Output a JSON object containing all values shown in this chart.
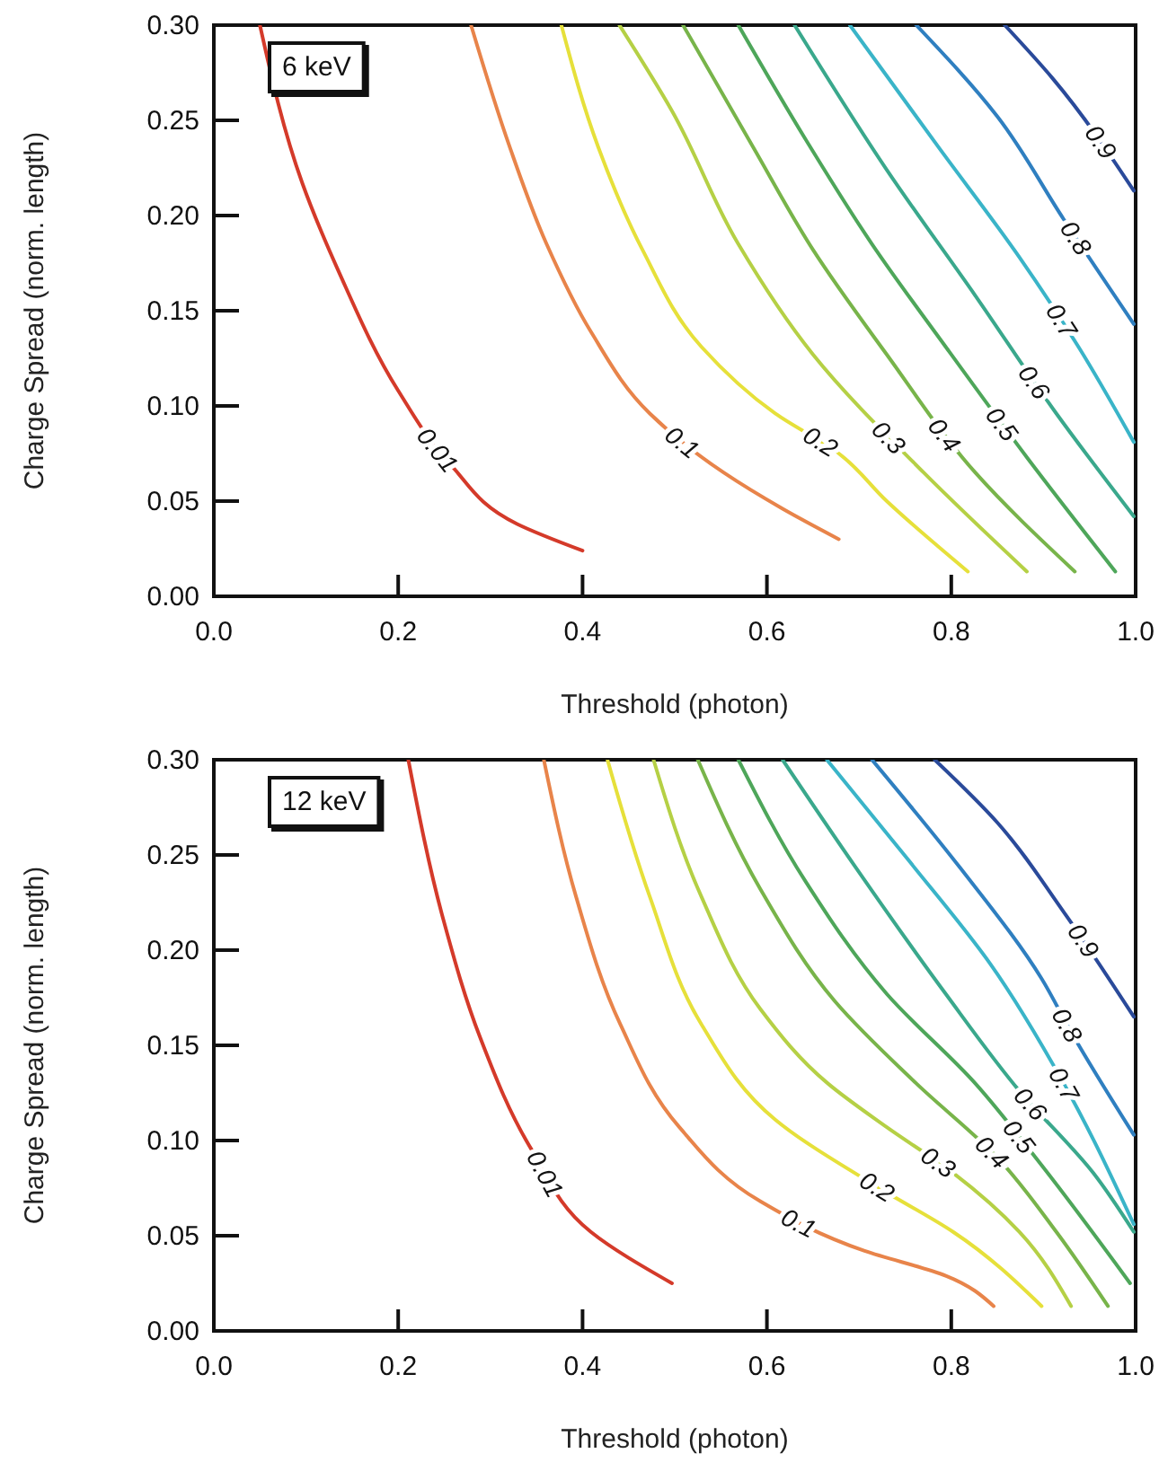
{
  "chart_data": [
    {
      "type": "line",
      "xlabel": "Threshold (photon)",
      "ylabel": "Charge Spread (norm. length)",
      "annotations": [
        "6 keV"
      ],
      "xlim": [
        0,
        1
      ],
      "ylim": [
        0,
        0.3
      ],
      "xticks": [
        {
          "value": 0,
          "label": "0.0"
        },
        {
          "value": 0.2,
          "label": "0.2"
        },
        {
          "value": 0.4,
          "label": "0.4"
        },
        {
          "value": 0.6,
          "label": "0.6"
        },
        {
          "value": 0.8,
          "label": "0.8"
        },
        {
          "value": 1,
          "label": "1.0"
        }
      ],
      "yticks": [
        {
          "value": 0,
          "label": "0.00"
        },
        {
          "value": 0.05,
          "label": "0.05"
        },
        {
          "value": 0.1,
          "label": "0.10"
        },
        {
          "value": 0.15,
          "label": "0.15"
        },
        {
          "value": 0.2,
          "label": "0.20"
        },
        {
          "value": 0.25,
          "label": "0.25"
        },
        {
          "value": 0.3,
          "label": "0.30"
        }
      ],
      "grid": false,
      "legend": false,
      "series": [
        {
          "name": "0.01",
          "color": "#d43a2a",
          "x": [
            0.05,
            0.096,
            0.136,
            0.2,
            0.257,
            0.329,
            0.4
          ],
          "values": [
            0.3,
            0.217,
            0.17,
            0.108,
            0.069,
            0.038,
            0.024
          ]
        },
        {
          "name": "0.1",
          "color": "#e8844a",
          "x": [
            0.279,
            0.321,
            0.361,
            0.409,
            0.473,
            0.553,
            0.617,
            0.678
          ],
          "values": [
            0.3,
            0.236,
            0.185,
            0.139,
            0.096,
            0.065,
            0.046,
            0.03
          ]
        },
        {
          "name": "0.2",
          "color": "#e6e03a",
          "x": [
            0.377,
            0.417,
            0.465,
            0.529,
            0.609,
            0.678,
            0.73,
            0.818
          ],
          "values": [
            0.3,
            0.236,
            0.182,
            0.131,
            0.096,
            0.075,
            0.05,
            0.013
          ]
        },
        {
          "name": "0.3",
          "color": "#b5d045",
          "x": [
            0.44,
            0.497,
            0.569,
            0.65,
            0.77,
            0.882
          ],
          "values": [
            0.3,
            0.255,
            0.185,
            0.127,
            0.065,
            0.013
          ]
        },
        {
          "name": "0.4",
          "color": "#78b44a",
          "x": [
            0.509,
            0.585,
            0.65,
            0.73,
            0.826,
            0.934
          ],
          "values": [
            0.3,
            0.236,
            0.182,
            0.127,
            0.065,
            0.013
          ]
        },
        {
          "name": "0.5",
          "color": "#4ea65a",
          "x": [
            0.569,
            0.642,
            0.714,
            0.794,
            0.882,
            0.978
          ],
          "values": [
            0.3,
            0.24,
            0.185,
            0.131,
            0.073,
            0.013
          ]
        },
        {
          "name": "0.6",
          "color": "#3aa88c",
          "x": [
            0.63,
            0.73,
            0.826,
            0.914,
            0.998
          ],
          "values": [
            0.3,
            0.224,
            0.158,
            0.096,
            0.042
          ]
        },
        {
          "name": "0.7",
          "color": "#3ab4c8",
          "x": [
            0.69,
            0.786,
            0.874,
            0.938,
            0.998
          ],
          "values": [
            0.3,
            0.236,
            0.178,
            0.131,
            0.081
          ]
        },
        {
          "name": "0.8",
          "color": "#2f7fc0",
          "x": [
            0.762,
            0.85,
            0.922,
            0.998
          ],
          "values": [
            0.3,
            0.252,
            0.198,
            0.143
          ]
        },
        {
          "name": "0.9",
          "color": "#2a4a9a",
          "x": [
            0.858,
            0.91,
            0.998
          ],
          "values": [
            0.3,
            0.272,
            0.213
          ]
        }
      ]
    },
    {
      "type": "line",
      "xlabel": "Threshold (photon)",
      "ylabel": "Charge Spread (norm. length)",
      "annotations": [
        "12 keV"
      ],
      "xlim": [
        0,
        1
      ],
      "ylim": [
        0,
        0.3
      ],
      "xticks": [
        {
          "value": 0,
          "label": "0.0"
        },
        {
          "value": 0.2,
          "label": "0.2"
        },
        {
          "value": 0.4,
          "label": "0.4"
        },
        {
          "value": 0.6,
          "label": "0.6"
        },
        {
          "value": 0.8,
          "label": "0.8"
        },
        {
          "value": 1,
          "label": "1.0"
        }
      ],
      "yticks": [
        {
          "value": 0,
          "label": "0.00"
        },
        {
          "value": 0.05,
          "label": "0.05"
        },
        {
          "value": 0.1,
          "label": "0.10"
        },
        {
          "value": 0.15,
          "label": "0.15"
        },
        {
          "value": 0.2,
          "label": "0.20"
        },
        {
          "value": 0.25,
          "label": "0.25"
        },
        {
          "value": 0.3,
          "label": "0.30"
        }
      ],
      "grid": false,
      "legend": false,
      "series": [
        {
          "name": "0.01",
          "color": "#d43a2a",
          "x": [
            0.211,
            0.249,
            0.289,
            0.345,
            0.409,
            0.497
          ],
          "values": [
            0.3,
            0.216,
            0.154,
            0.095,
            0.052,
            0.025
          ]
        },
        {
          "name": "0.1",
          "color": "#e8844a",
          "x": [
            0.358,
            0.393,
            0.441,
            0.505,
            0.593,
            0.706,
            0.794,
            0.846
          ],
          "values": [
            0.3,
            0.228,
            0.161,
            0.107,
            0.068,
            0.042,
            0.029,
            0.013
          ]
        },
        {
          "name": "0.2",
          "color": "#e6e03a",
          "x": [
            0.427,
            0.473,
            0.529,
            0.609,
            0.722,
            0.802,
            0.898
          ],
          "values": [
            0.3,
            0.228,
            0.161,
            0.111,
            0.075,
            0.052,
            0.013
          ]
        },
        {
          "name": "0.3",
          "color": "#b5d045",
          "x": [
            0.477,
            0.529,
            0.593,
            0.666,
            0.73,
            0.802,
            0.874,
            0.93
          ],
          "values": [
            0.3,
            0.228,
            0.169,
            0.13,
            0.107,
            0.083,
            0.052,
            0.013
          ]
        },
        {
          "name": "0.4",
          "color": "#78b44a",
          "x": [
            0.525,
            0.593,
            0.674,
            0.762,
            0.85,
            0.914,
            0.97
          ],
          "values": [
            0.3,
            0.232,
            0.173,
            0.13,
            0.091,
            0.052,
            0.013
          ]
        },
        {
          "name": "0.5",
          "color": "#4ea65a",
          "x": [
            0.569,
            0.642,
            0.73,
            0.826,
            0.898,
            0.994
          ],
          "values": [
            0.3,
            0.236,
            0.177,
            0.13,
            0.087,
            0.025
          ]
        },
        {
          "name": "0.6",
          "color": "#3aa88c",
          "x": [
            0.617,
            0.697,
            0.794,
            0.874,
            0.954,
            0.998
          ],
          "values": [
            0.3,
            0.243,
            0.177,
            0.126,
            0.083,
            0.052
          ]
        },
        {
          "name": "0.7",
          "color": "#3ab4c8",
          "x": [
            0.665,
            0.754,
            0.842,
            0.922,
            0.998
          ],
          "values": [
            0.3,
            0.247,
            0.193,
            0.13,
            0.056
          ]
        },
        {
          "name": "0.8",
          "color": "#2f7fc0",
          "x": [
            0.714,
            0.81,
            0.898,
            0.93,
            0.998
          ],
          "values": [
            0.3,
            0.243,
            0.185,
            0.157,
            0.103
          ]
        },
        {
          "name": "0.9",
          "color": "#2a4a9a",
          "x": [
            0.782,
            0.85,
            0.922,
            0.998
          ],
          "values": [
            0.3,
            0.267,
            0.22,
            0.165
          ]
        }
      ]
    }
  ]
}
